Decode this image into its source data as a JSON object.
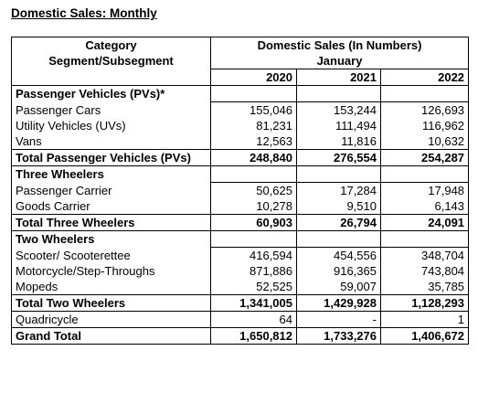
{
  "title": "Domestic Sales: Monthly",
  "header": {
    "category_line1": "Category",
    "category_line2": "Segment/Subsegment",
    "sales_line1": "Domestic Sales (In Numbers)",
    "month": "January",
    "years": [
      "2020",
      "2021",
      "2022"
    ]
  },
  "rows": [
    {
      "label": "Passenger Vehicles (PVs)*",
      "type": "section",
      "values": [
        "",
        "",
        ""
      ]
    },
    {
      "label": "Passenger Cars",
      "type": "item",
      "values": [
        "155,046",
        "153,244",
        "126,693"
      ]
    },
    {
      "label": "Utility Vehicles (UVs)",
      "type": "item",
      "values": [
        "81,231",
        "111,494",
        "116,962"
      ]
    },
    {
      "label": "Vans",
      "type": "item",
      "values": [
        "12,563",
        "11,816",
        "10,632"
      ]
    },
    {
      "label": "Total Passenger Vehicles (PVs)",
      "type": "total",
      "values": [
        "248,840",
        "276,554",
        "254,287"
      ]
    },
    {
      "label": "Three Wheelers",
      "type": "section",
      "values": [
        "",
        "",
        ""
      ]
    },
    {
      "label": "Passenger Carrier",
      "type": "item",
      "values": [
        "50,625",
        "17,284",
        "17,948"
      ]
    },
    {
      "label": "Goods Carrier",
      "type": "item",
      "values": [
        "10,278",
        "9,510",
        "6,143"
      ]
    },
    {
      "label": "Total Three Wheelers",
      "type": "total",
      "values": [
        "60,903",
        "26,794",
        "24,091"
      ]
    },
    {
      "label": "Two Wheelers",
      "type": "section",
      "values": [
        "",
        "",
        ""
      ]
    },
    {
      "label": "Scooter/ Scooterettee",
      "type": "item",
      "values": [
        "416,594",
        "454,556",
        "348,704"
      ]
    },
    {
      "label": "Motorcycle/Step-Throughs",
      "type": "item",
      "values": [
        "871,886",
        "916,365",
        "743,804"
      ]
    },
    {
      "label": "Mopeds",
      "type": "item",
      "values": [
        "52,525",
        "59,007",
        "35,785"
      ]
    },
    {
      "label": "Total Two Wheelers",
      "type": "total",
      "values": [
        "1,341,005",
        "1,429,928",
        "1,128,293"
      ]
    },
    {
      "label": "Quadricycle",
      "type": "item-sep",
      "values": [
        "64",
        "-",
        "1"
      ]
    },
    {
      "label": "Grand Total",
      "type": "grand",
      "values": [
        "1,650,812",
        "1,733,276",
        "1,406,672"
      ]
    }
  ]
}
